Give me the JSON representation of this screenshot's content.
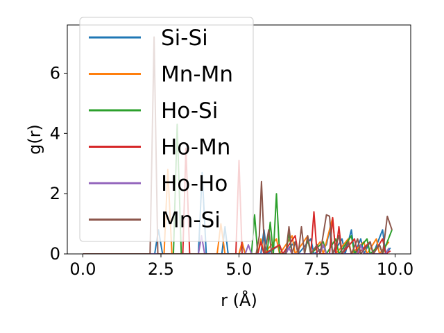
{
  "chart_data": {
    "type": "line",
    "title": "",
    "xlabel": "r (Å)",
    "ylabel": "g(r)",
    "xlim": [
      -0.5,
      10.5
    ],
    "ylim": [
      0,
      7.6
    ],
    "xticks": [
      0.0,
      2.5,
      5.0,
      7.5,
      10.0
    ],
    "xtick_labels": [
      "0.0",
      "2.5",
      "5.0",
      "7.5",
      "10.0"
    ],
    "yticks": [
      0,
      2,
      4,
      6
    ],
    "ytick_labels": [
      "0",
      "2",
      "4",
      "6"
    ],
    "grid": false,
    "legend_position": "top-left",
    "series": [
      {
        "name": "Si-Si",
        "color": "#1f77b4",
        "points": [
          [
            0,
            0
          ],
          [
            2.3,
            0
          ],
          [
            2.42,
            0.8
          ],
          [
            2.55,
            0
          ],
          [
            3.7,
            0
          ],
          [
            3.82,
            2.7
          ],
          [
            3.95,
            0
          ],
          [
            4.45,
            0
          ],
          [
            4.55,
            0.9
          ],
          [
            4.65,
            0
          ],
          [
            5.0,
            0
          ],
          [
            5.1,
            0.3
          ],
          [
            5.2,
            0
          ],
          [
            5.7,
            0
          ],
          [
            5.8,
            0.8
          ],
          [
            5.9,
            0
          ],
          [
            6.3,
            0.3
          ],
          [
            6.4,
            0
          ],
          [
            6.8,
            0.4
          ],
          [
            6.9,
            0
          ],
          [
            7.3,
            0.5
          ],
          [
            7.4,
            0
          ],
          [
            7.8,
            0.3
          ],
          [
            7.9,
            0.8
          ],
          [
            8.0,
            0
          ],
          [
            8.3,
            0.5
          ],
          [
            8.4,
            0
          ],
          [
            8.6,
            0.8
          ],
          [
            8.7,
            0
          ],
          [
            8.9,
            0.5
          ],
          [
            9.0,
            0
          ],
          [
            9.2,
            0.4
          ],
          [
            9.3,
            0
          ],
          [
            9.6,
            0.8
          ],
          [
            9.7,
            0
          ],
          [
            9.85,
            0.2
          ]
        ]
      },
      {
        "name": "Mn-Mn",
        "color": "#ff7f0e",
        "points": [
          [
            0,
            0
          ],
          [
            2.6,
            0
          ],
          [
            2.72,
            2.8
          ],
          [
            2.85,
            0
          ],
          [
            4.3,
            0
          ],
          [
            4.42,
            1.0
          ],
          [
            4.55,
            0
          ],
          [
            5.0,
            0
          ],
          [
            5.1,
            0.4
          ],
          [
            5.2,
            0
          ],
          [
            5.6,
            0
          ],
          [
            5.7,
            0.5
          ],
          [
            5.8,
            0
          ],
          [
            6.2,
            0.5
          ],
          [
            6.3,
            0
          ],
          [
            6.7,
            0.6
          ],
          [
            6.8,
            0
          ],
          [
            7.2,
            0.6
          ],
          [
            7.3,
            0
          ],
          [
            7.6,
            0.4
          ],
          [
            7.7,
            0
          ],
          [
            8.0,
            1.2
          ],
          [
            8.1,
            0
          ],
          [
            8.5,
            0.5
          ],
          [
            8.6,
            0
          ],
          [
            9.0,
            0.4
          ],
          [
            9.1,
            0
          ],
          [
            9.4,
            0.5
          ],
          [
            9.5,
            0
          ],
          [
            9.8,
            0.4
          ]
        ]
      },
      {
        "name": "Ho-Si",
        "color": "#2ca02c",
        "points": [
          [
            0,
            0
          ],
          [
            2.9,
            0
          ],
          [
            3.02,
            4.3
          ],
          [
            3.15,
            0
          ],
          [
            5.4,
            0
          ],
          [
            5.5,
            1.3
          ],
          [
            5.6,
            0
          ],
          [
            5.9,
            0
          ],
          [
            6.0,
            1.05
          ],
          [
            6.1,
            0
          ],
          [
            6.2,
            2.0
          ],
          [
            6.3,
            0
          ],
          [
            6.5,
            0
          ],
          [
            6.6,
            0.7
          ],
          [
            6.7,
            0
          ],
          [
            7.1,
            0
          ],
          [
            7.2,
            0.5
          ],
          [
            7.3,
            0
          ],
          [
            7.7,
            0.4
          ],
          [
            7.8,
            0
          ],
          [
            8.1,
            0.5
          ],
          [
            8.2,
            0
          ],
          [
            8.6,
            0.6
          ],
          [
            8.7,
            0
          ],
          [
            9.1,
            0.5
          ],
          [
            9.2,
            0
          ],
          [
            9.5,
            0.3
          ],
          [
            9.6,
            0
          ],
          [
            9.9,
            0.8
          ]
        ]
      },
      {
        "name": "Ho-Mn",
        "color": "#d62728",
        "points": [
          [
            0,
            0
          ],
          [
            3.2,
            0
          ],
          [
            3.3,
            3.5
          ],
          [
            3.42,
            0
          ],
          [
            4.9,
            0
          ],
          [
            5.0,
            3.1
          ],
          [
            5.1,
            0
          ],
          [
            5.6,
            0
          ],
          [
            5.7,
            0.4
          ],
          [
            5.8,
            0
          ],
          [
            6.3,
            0.3
          ],
          [
            6.4,
            0
          ],
          [
            6.8,
            0.6
          ],
          [
            6.9,
            0
          ],
          [
            7.3,
            0
          ],
          [
            7.4,
            1.4
          ],
          [
            7.5,
            0
          ],
          [
            7.9,
            0
          ],
          [
            8.0,
            1.2
          ],
          [
            8.1,
            0
          ],
          [
            8.2,
            0.9
          ],
          [
            8.3,
            0
          ],
          [
            8.7,
            0.5
          ],
          [
            8.8,
            0
          ],
          [
            9.2,
            0.4
          ],
          [
            9.3,
            0
          ],
          [
            9.6,
            0.5
          ],
          [
            9.7,
            0
          ],
          [
            9.85,
            0.1
          ]
        ]
      },
      {
        "name": "Ho-Ho",
        "color": "#9467bd",
        "points": [
          [
            0,
            0
          ],
          [
            3.7,
            0
          ],
          [
            3.8,
            0.6
          ],
          [
            3.9,
            0
          ],
          [
            5.2,
            0
          ],
          [
            5.3,
            0.3
          ],
          [
            5.4,
            0
          ],
          [
            6.5,
            0
          ],
          [
            6.6,
            0.2
          ],
          [
            6.7,
            0
          ],
          [
            7.6,
            0
          ],
          [
            7.7,
            0.3
          ],
          [
            7.8,
            0
          ],
          [
            8.8,
            0
          ],
          [
            8.9,
            0.3
          ],
          [
            9.0,
            0
          ],
          [
            9.7,
            0
          ],
          [
            9.8,
            0.2
          ]
        ]
      },
      {
        "name": "Mn-Si",
        "color": "#8c564b",
        "points": [
          [
            0,
            0
          ],
          [
            2.15,
            0
          ],
          [
            2.28,
            7.2
          ],
          [
            2.4,
            0
          ],
          [
            5.55,
            0
          ],
          [
            5.65,
            0.6
          ],
          [
            5.72,
            2.4
          ],
          [
            5.82,
            0
          ],
          [
            5.95,
            0.8
          ],
          [
            6.05,
            0
          ],
          [
            6.5,
            0
          ],
          [
            6.6,
            0.9
          ],
          [
            6.7,
            0
          ],
          [
            6.8,
            0.4
          ],
          [
            6.9,
            0
          ],
          [
            7.0,
            0.9
          ],
          [
            7.1,
            0
          ],
          [
            7.2,
            0.6
          ],
          [
            7.3,
            0
          ],
          [
            7.5,
            0.3
          ],
          [
            7.6,
            0
          ],
          [
            7.8,
            1.3
          ],
          [
            7.9,
            1.25
          ],
          [
            8.0,
            0
          ],
          [
            8.2,
            0.6
          ],
          [
            8.3,
            0
          ],
          [
            8.5,
            0.4
          ],
          [
            8.6,
            0
          ],
          [
            8.8,
            0.5
          ],
          [
            8.9,
            0
          ],
          [
            9.2,
            0.4
          ],
          [
            9.3,
            0
          ],
          [
            9.5,
            0.3
          ],
          [
            9.6,
            0
          ],
          [
            9.75,
            1.25
          ],
          [
            9.9,
            0.8
          ]
        ]
      }
    ]
  }
}
